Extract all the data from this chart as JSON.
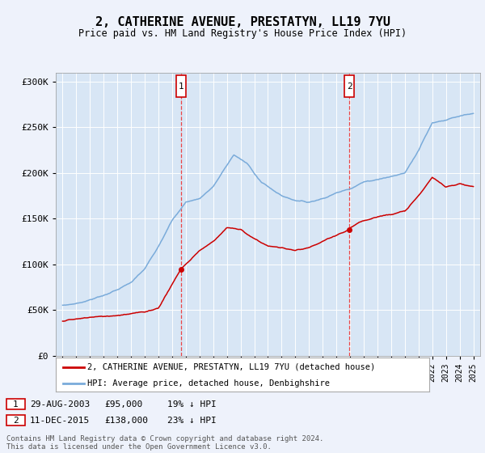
{
  "title": "2, CATHERINE AVENUE, PRESTATYN, LL19 7YU",
  "subtitle": "Price paid vs. HM Land Registry's House Price Index (HPI)",
  "background_color": "#eef2fb",
  "plot_bg_color": "#d8e6f5",
  "grid_color": "#ffffff",
  "sale1_date": 2003.65,
  "sale1_label": "1",
  "sale1_price": 95000,
  "sale1_pct": "19% ↓ HPI",
  "sale1_date_str": "29-AUG-2003",
  "sale2_date": 2015.94,
  "sale2_label": "2",
  "sale2_price": 138000,
  "sale2_pct": "23% ↓ HPI",
  "sale2_date_str": "11-DEC-2015",
  "legend_property": "2, CATHERINE AVENUE, PRESTATYN, LL19 7YU (detached house)",
  "legend_hpi": "HPI: Average price, detached house, Denbighshire",
  "footer": "Contains HM Land Registry data © Crown copyright and database right 2024.\nThis data is licensed under the Open Government Licence v3.0.",
  "property_color": "#cc0000",
  "hpi_color": "#7aabda",
  "dashed_line_color": "#ee3333",
  "ylim_min": 0,
  "ylim_max": 310000,
  "xmin": 1994.5,
  "xmax": 2025.5,
  "yticks": [
    0,
    50000,
    100000,
    150000,
    200000,
    250000,
    300000
  ],
  "ylabels": [
    "£0",
    "£50K",
    "£100K",
    "£150K",
    "£200K",
    "£250K",
    "£300K"
  ]
}
